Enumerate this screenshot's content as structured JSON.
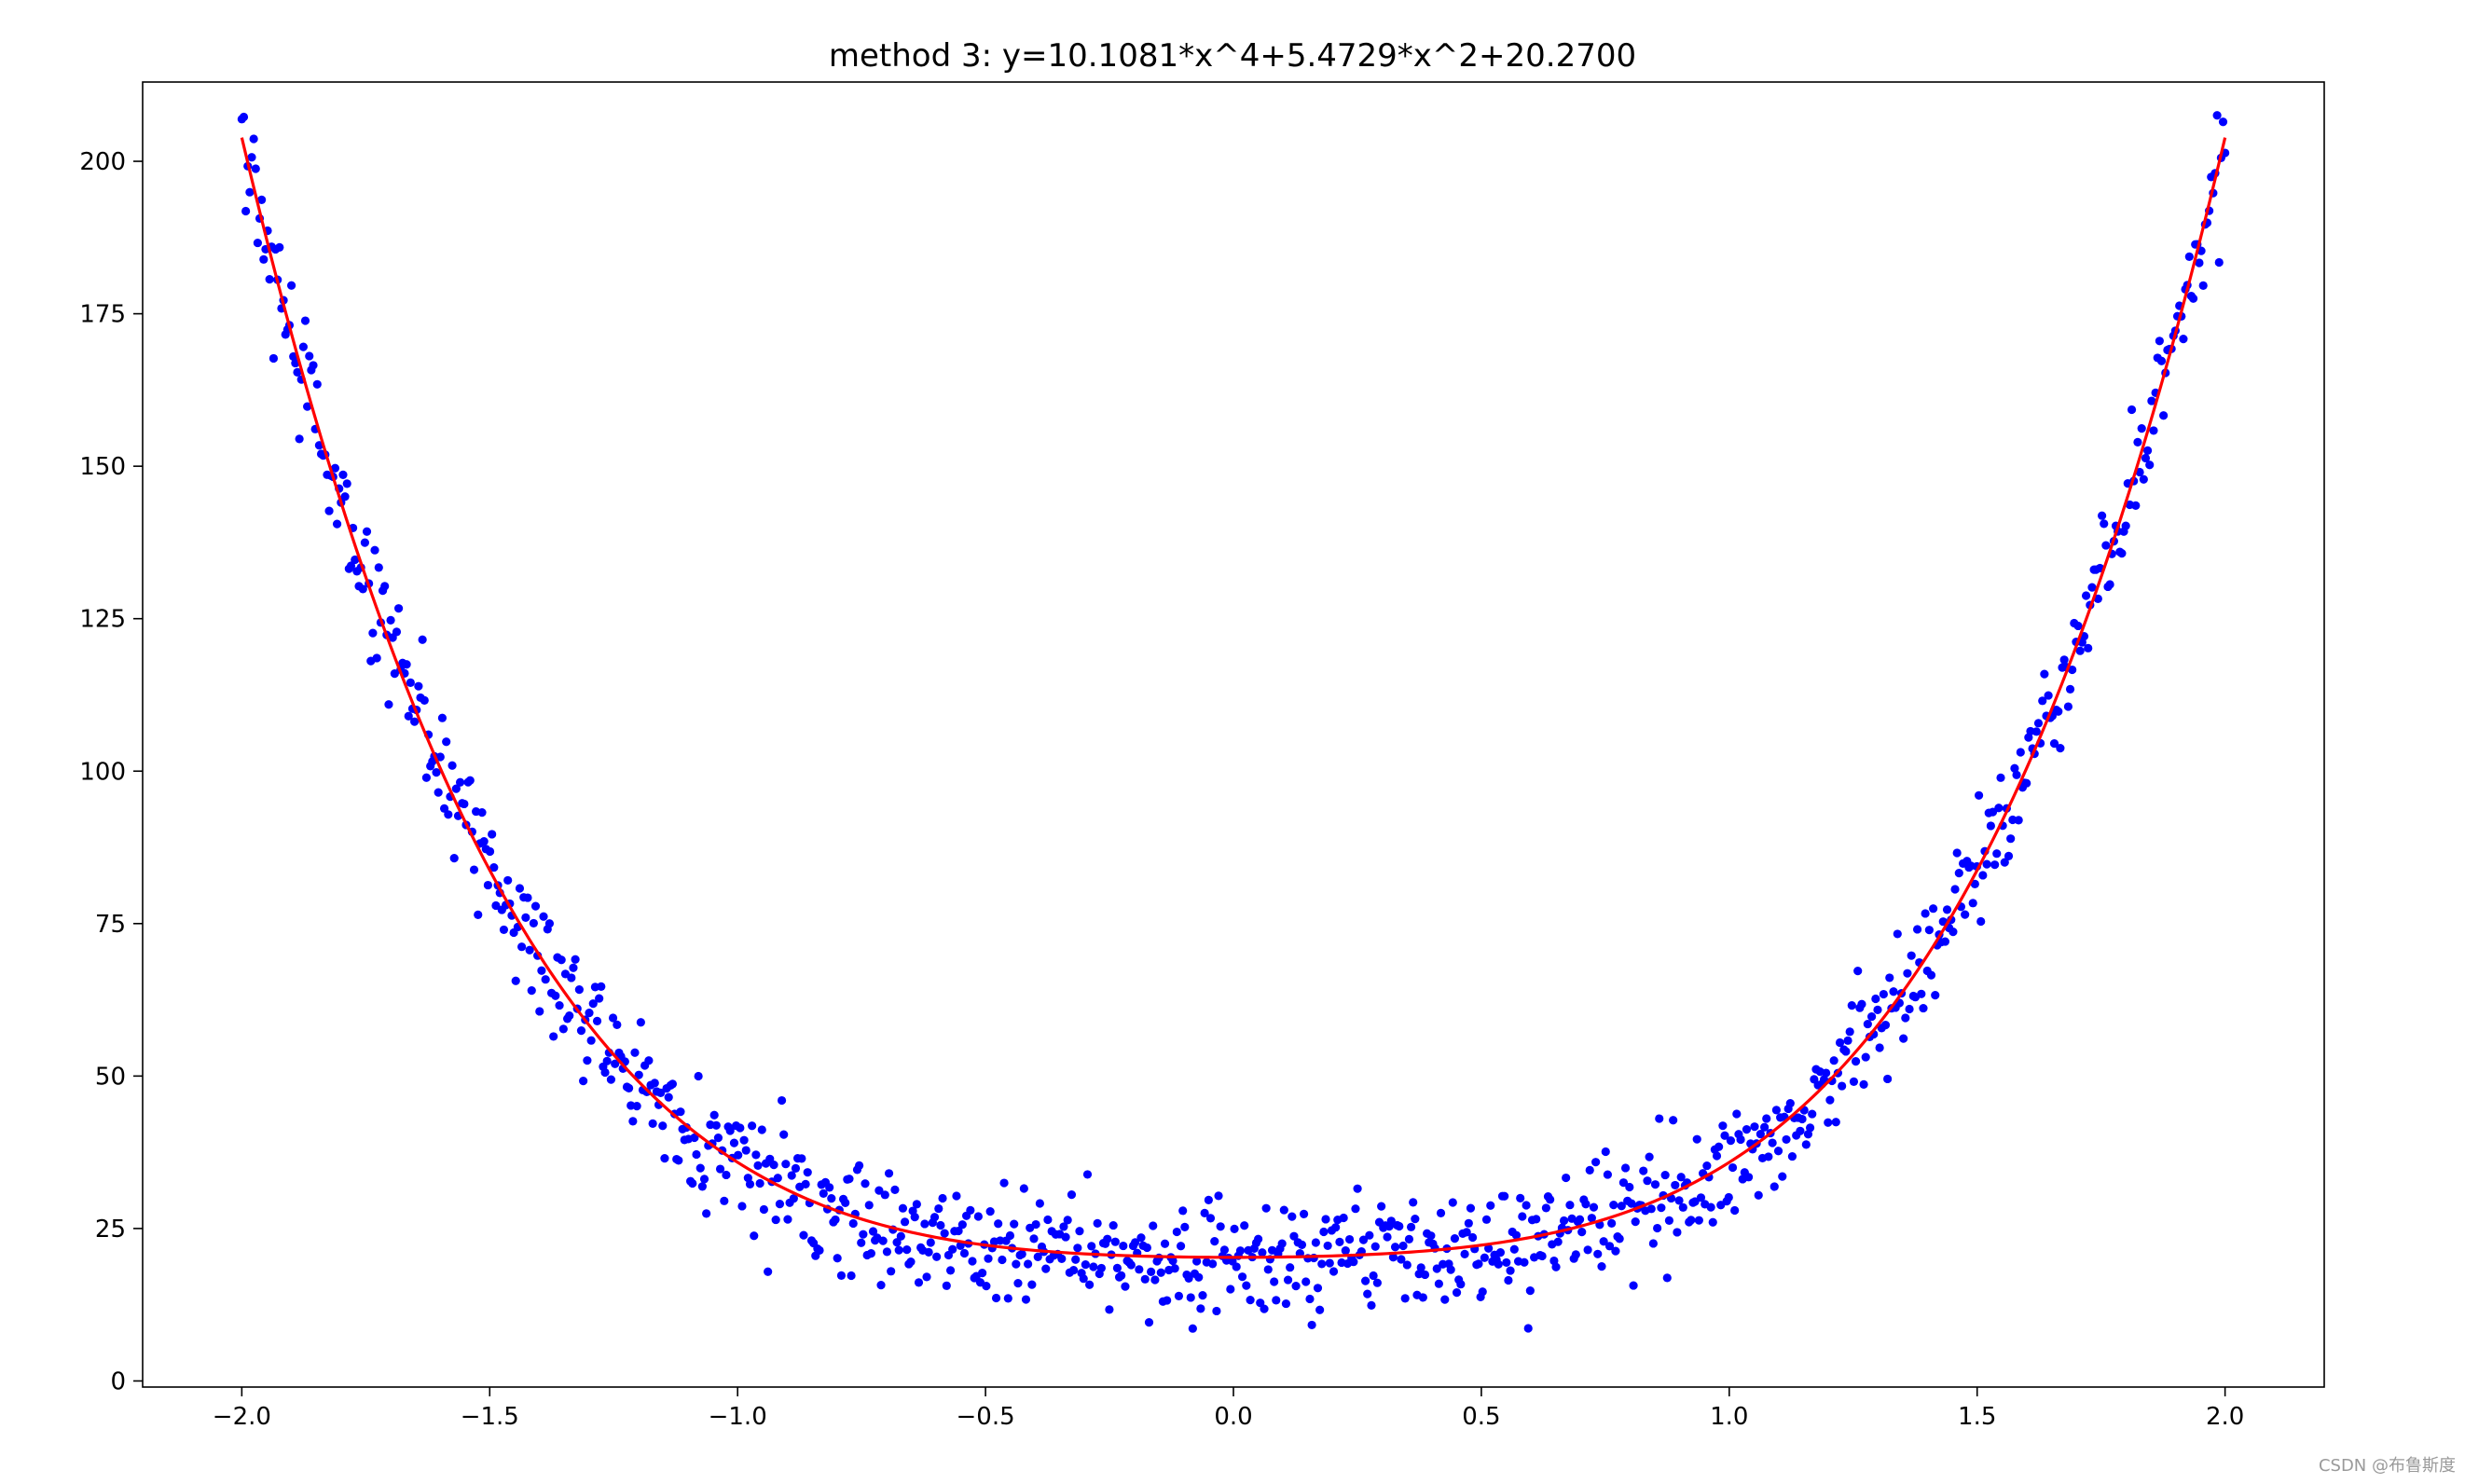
{
  "chart_data": {
    "type": "scatter",
    "title": "method 3: y=10.1081*x^4+5.4729*x^2+20.2700",
    "xlabel": "",
    "ylabel": "",
    "xlim": [
      -2.2,
      2.2
    ],
    "ylim": [
      -1,
      213
    ],
    "xticks": [
      -2.0,
      -1.5,
      -1.0,
      -0.5,
      0.0,
      0.5,
      1.0,
      1.5,
      2.0
    ],
    "xtick_labels": [
      "−2.0",
      "−1.5",
      "−1.0",
      "−0.5",
      "0.0",
      "0.5",
      "1.0",
      "1.5",
      "2.0"
    ],
    "yticks": [
      0,
      25,
      50,
      75,
      100,
      125,
      150,
      175,
      200
    ],
    "ytick_labels": [
      "0",
      "25",
      "50",
      "75",
      "100",
      "125",
      "150",
      "175",
      "200"
    ],
    "grid": false,
    "series": [
      {
        "kind": "scatter",
        "color": "#0000ff",
        "x_range": [
          -2.0,
          2.0
        ],
        "point_count": 1000,
        "noise_sd": 5,
        "model": {
          "a4": 10.1081,
          "a2": 5.4729,
          "a0": 20.27
        }
      },
      {
        "kind": "line",
        "color": "#ff0000",
        "x_range": [
          -2.0,
          2.0
        ],
        "model": {
          "a4": 10.1081,
          "a2": 5.4729,
          "a0": 20.27
        }
      }
    ]
  },
  "watermark": "CSDN @布鲁斯度"
}
